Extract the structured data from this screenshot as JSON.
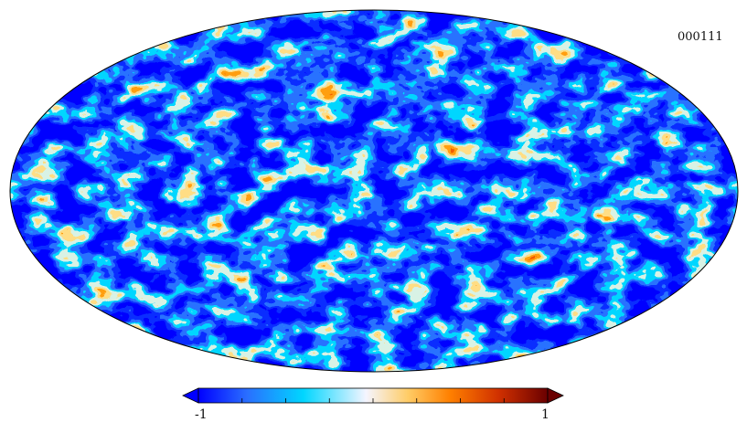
{
  "map": {
    "id_label": "000111",
    "projection": "mollweide",
    "field": "random-gaussian-anisotropic"
  },
  "colorbar": {
    "min_label": "-1",
    "max_label": "1",
    "min": -1,
    "max": 1,
    "ticks": 9,
    "extend": "both",
    "colors": [
      "#0000ff",
      "#2a6fff",
      "#00d6ff",
      "#f5f5ff",
      "#ffcc66",
      "#ff8000",
      "#d03000",
      "#6a0000"
    ]
  }
}
